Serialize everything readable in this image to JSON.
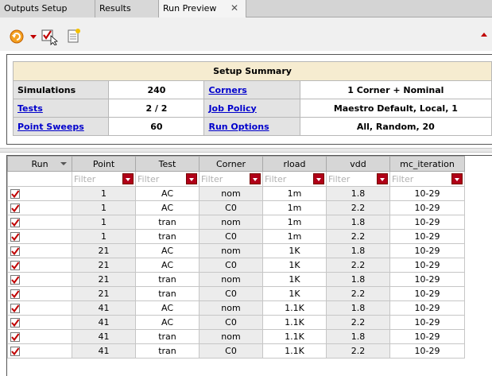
{
  "tabs": [
    {
      "label": "Outputs Setup",
      "active": false
    },
    {
      "label": "Results",
      "active": false
    },
    {
      "label": "Run Preview",
      "active": true
    }
  ],
  "tab_close_glyph": "✕",
  "toolbar": {
    "icons": [
      "undo-icon",
      "dropdown-arrow-icon",
      "select-checked-icon",
      "notes-icon"
    ],
    "collapse_icon": "collapse-up-icon"
  },
  "summary": {
    "title": "Setup Summary",
    "rows": [
      {
        "label1": "Simulations",
        "link1": false,
        "value1": "240",
        "label2": "Corners",
        "link2": true,
        "value2": "1 Corner + Nominal"
      },
      {
        "label1": "Tests",
        "link1": true,
        "value1": "2 / 2",
        "label2": "Job Policy",
        "link2": true,
        "value2": "Maestro Default, Local, 1"
      },
      {
        "label1": "Point Sweeps",
        "link1": true,
        "value1": "60",
        "label2": "Run Options",
        "link2": true,
        "value2": "All, Random, 20"
      }
    ]
  },
  "grid": {
    "columns": [
      "Run",
      "Point",
      "Test",
      "Corner",
      "rload",
      "vdd",
      "mc_iteration"
    ],
    "filter_placeholder": "Filter",
    "rows": [
      {
        "point": "1",
        "test": "AC",
        "corner": "nom",
        "rload": "1m",
        "vdd": "1.8",
        "mc": "10-29"
      },
      {
        "point": "1",
        "test": "AC",
        "corner": "C0",
        "rload": "1m",
        "vdd": "2.2",
        "mc": "10-29"
      },
      {
        "point": "1",
        "test": "tran",
        "corner": "nom",
        "rload": "1m",
        "vdd": "1.8",
        "mc": "10-29"
      },
      {
        "point": "1",
        "test": "tran",
        "corner": "C0",
        "rload": "1m",
        "vdd": "2.2",
        "mc": "10-29"
      },
      {
        "point": "21",
        "test": "AC",
        "corner": "nom",
        "rload": "1K",
        "vdd": "1.8",
        "mc": "10-29"
      },
      {
        "point": "21",
        "test": "AC",
        "corner": "C0",
        "rload": "1K",
        "vdd": "2.2",
        "mc": "10-29"
      },
      {
        "point": "21",
        "test": "tran",
        "corner": "nom",
        "rload": "1K",
        "vdd": "1.8",
        "mc": "10-29"
      },
      {
        "point": "21",
        "test": "tran",
        "corner": "C0",
        "rload": "1K",
        "vdd": "2.2",
        "mc": "10-29"
      },
      {
        "point": "41",
        "test": "AC",
        "corner": "nom",
        "rload": "1.1K",
        "vdd": "1.8",
        "mc": "10-29"
      },
      {
        "point": "41",
        "test": "AC",
        "corner": "C0",
        "rload": "1.1K",
        "vdd": "2.2",
        "mc": "10-29"
      },
      {
        "point": "41",
        "test": "tran",
        "corner": "nom",
        "rload": "1.1K",
        "vdd": "1.8",
        "mc": "10-29"
      },
      {
        "point": "41",
        "test": "tran",
        "corner": "C0",
        "rload": "1.1K",
        "vdd": "2.2",
        "mc": "10-29"
      }
    ]
  },
  "colors": {
    "accent_red": "#c00000",
    "link": "#0000cc",
    "header_bg": "#f6ecd0"
  }
}
